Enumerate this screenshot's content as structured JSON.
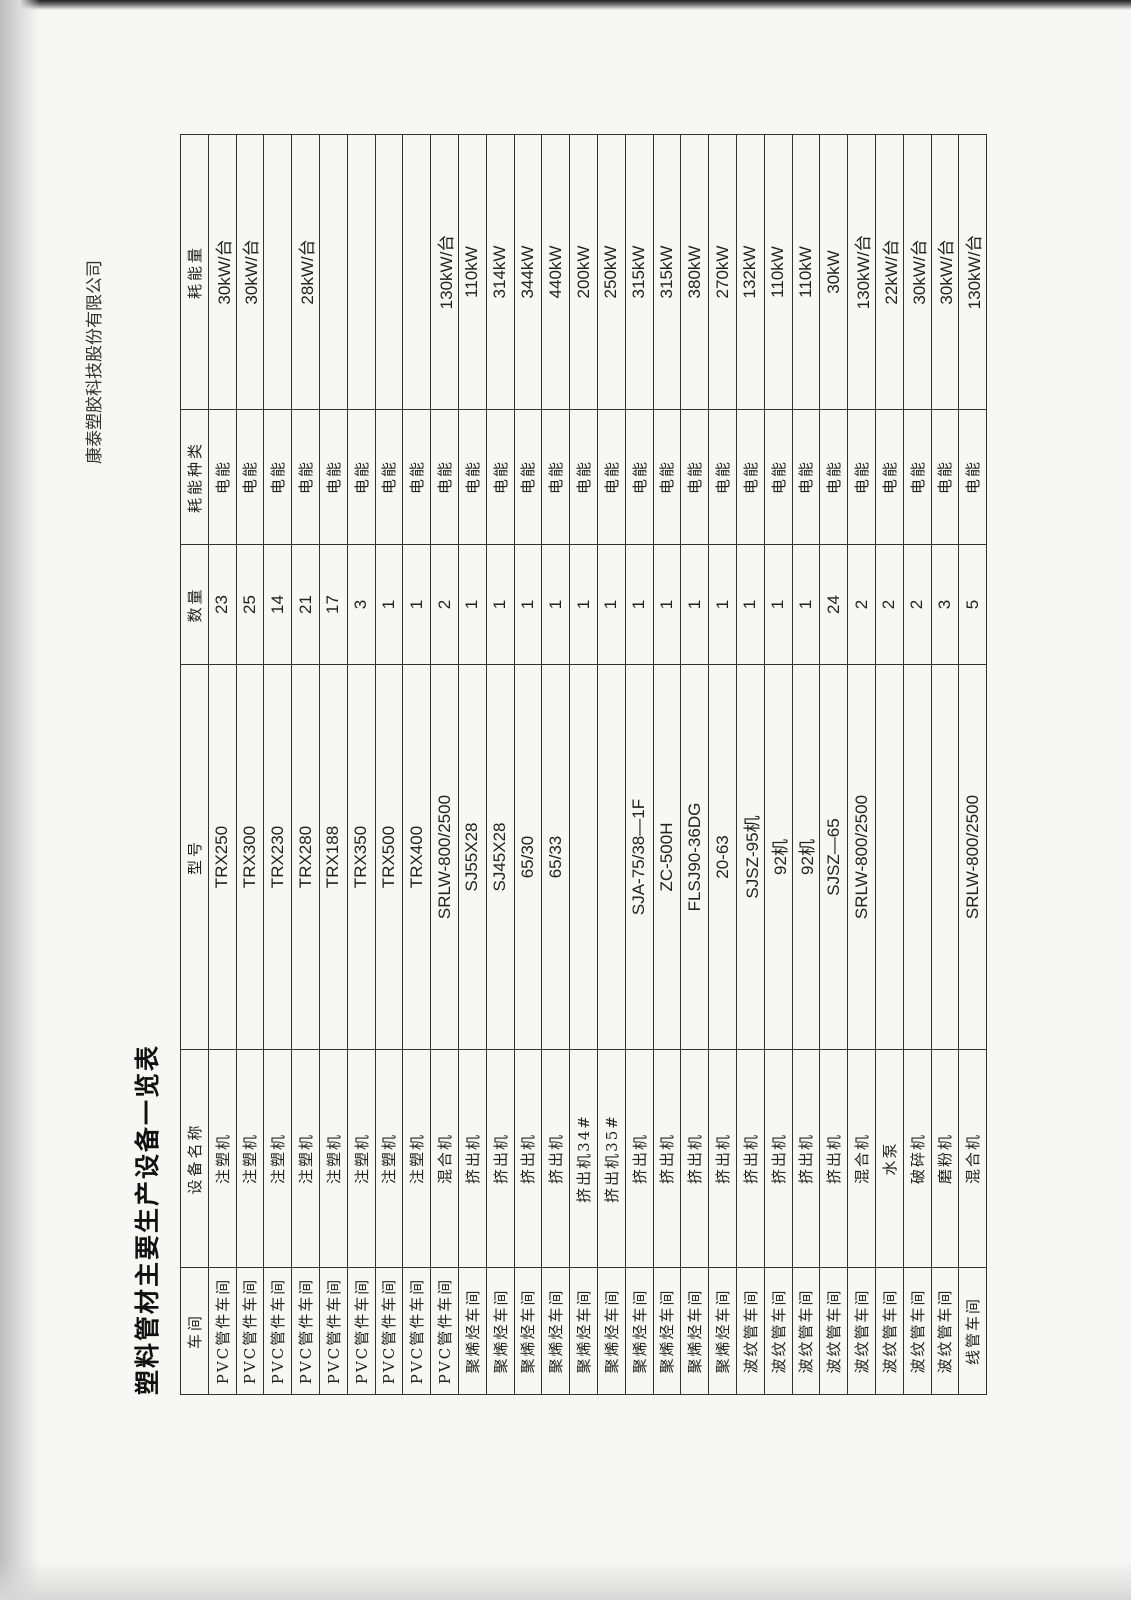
{
  "company": "康泰塑胶科技股份有限公司",
  "title": "塑料管材主要生产设备一览表",
  "table": {
    "headers": [
      "车间",
      "设备名称",
      "型号",
      "数量",
      "耗能种类",
      "耗能量"
    ],
    "rows": [
      [
        "PVC管件车间",
        "注塑机",
        "TRX250",
        "23",
        "电能",
        "30kW/台"
      ],
      [
        "PVC管件车间",
        "注塑机",
        "TRX300",
        "25",
        "电能",
        "30kW/台"
      ],
      [
        "PVC管件车间",
        "注塑机",
        "TRX230",
        "14",
        "电能",
        ""
      ],
      [
        "PVC管件车间",
        "注塑机",
        "TRX280",
        "21",
        "电能",
        "28kW/台"
      ],
      [
        "PVC管件车间",
        "注塑机",
        "TRX188",
        "17",
        "电能",
        ""
      ],
      [
        "PVC管件车间",
        "注塑机",
        "TRX350",
        "3",
        "电能",
        ""
      ],
      [
        "PVC管件车间",
        "注塑机",
        "TRX500",
        "1",
        "电能",
        ""
      ],
      [
        "PVC管件车间",
        "注塑机",
        "TRX400",
        "1",
        "电能",
        ""
      ],
      [
        "PVC管件车间",
        "混合机",
        "SRLW-800/2500",
        "2",
        "电能",
        "130kW/台"
      ],
      [
        "聚烯烃车间",
        "挤出机",
        "SJ55X28",
        "1",
        "电能",
        "110kW"
      ],
      [
        "聚烯烃车间",
        "挤出机",
        "SJ45X28",
        "1",
        "电能",
        "314kW"
      ],
      [
        "聚烯烃车间",
        "挤出机",
        "65/30",
        "1",
        "电能",
        "344kW"
      ],
      [
        "聚烯烃车间",
        "挤出机",
        "65/33",
        "1",
        "电能",
        "440kW"
      ],
      [
        "聚烯烃车间",
        "挤出机34#",
        "",
        "1",
        "电能",
        "200kW"
      ],
      [
        "聚烯烃车间",
        "挤出机35#",
        "",
        "1",
        "电能",
        "250kW"
      ],
      [
        "聚烯烃车间",
        "挤出机",
        "SJA-75/38—1F",
        "1",
        "电能",
        "315kW"
      ],
      [
        "聚烯烃车间",
        "挤出机",
        "ZC-500H",
        "1",
        "电能",
        "315kW"
      ],
      [
        "聚烯烃车间",
        "挤出机",
        "FLSJ90-36DG",
        "1",
        "电能",
        "380kW"
      ],
      [
        "聚烯烃车间",
        "挤出机",
        "20-63",
        "1",
        "电能",
        "270kW"
      ],
      [
        "波纹管车间",
        "挤出机",
        "SJSZ-95机",
        "1",
        "电能",
        "132kW"
      ],
      [
        "波纹管车间",
        "挤出机",
        "92机",
        "1",
        "电能",
        "110kW"
      ],
      [
        "波纹管车间",
        "挤出机",
        "92机",
        "1",
        "电能",
        "110kW"
      ],
      [
        "波纹管车间",
        "挤出机",
        "SJSZ—65",
        "24",
        "电能",
        "30kW"
      ],
      [
        "波纹管车间",
        "混合机",
        "SRLW-800/2500",
        "2",
        "电能",
        "130kW/台"
      ],
      [
        "波纹管车间",
        "水泵",
        "",
        "2",
        "电能",
        "22kW/台"
      ],
      [
        "波纹管车间",
        "破碎机",
        "",
        "2",
        "电能",
        "30kW/台"
      ],
      [
        "波纹管车间",
        "磨粉机",
        "",
        "3",
        "电能",
        "30kW/台"
      ],
      [
        "线管车间",
        "混合机",
        "SRLW-800/2500",
        "5",
        "电能",
        "130kW/台"
      ]
    ]
  }
}
